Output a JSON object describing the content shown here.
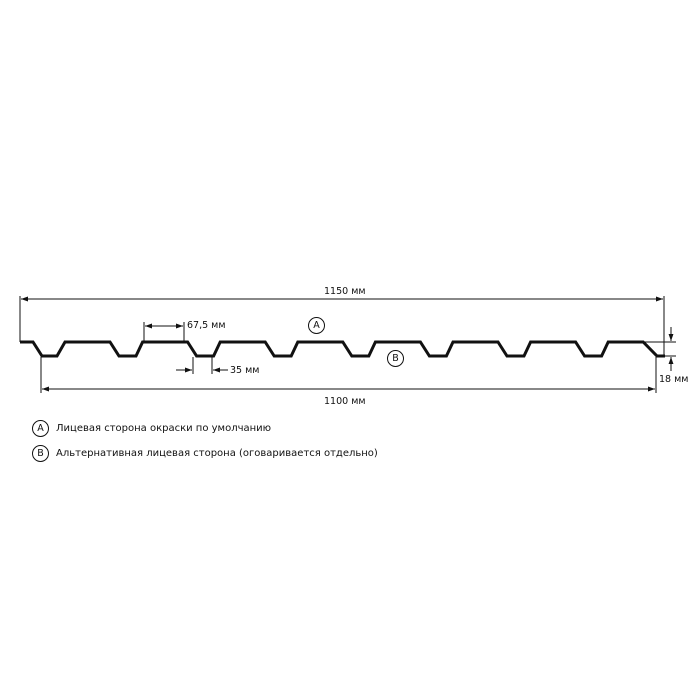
{
  "dimensions": {
    "total_width": "1150 мм",
    "useful_width": "1100 мм",
    "top_flange": "67,5 мм",
    "bottom_flange": "35 мм",
    "height": "18 мм"
  },
  "markers": {
    "a": "A",
    "b": "B"
  },
  "legend": [
    {
      "marker": "A",
      "text": "Лицевая сторона окраски по умолчанию"
    },
    {
      "marker": "B",
      "text": "Альтернативная лицевая сторона (оговаривается отдельно)"
    }
  ],
  "colors": {
    "line": "#111111",
    "background": "#ffffff"
  }
}
